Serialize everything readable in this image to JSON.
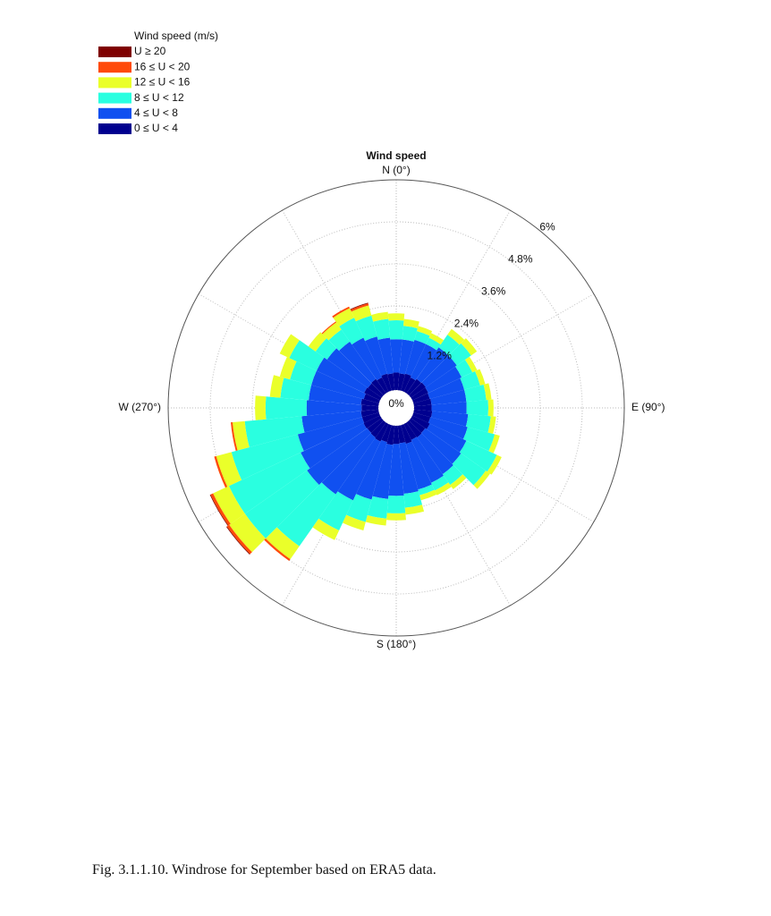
{
  "chart_data": {
    "type": "windrose",
    "title": "Wind speed",
    "legend_title": "Wind speed (m/s)",
    "directions": [
      0,
      10,
      20,
      30,
      40,
      50,
      60,
      70,
      80,
      90,
      100,
      110,
      120,
      130,
      140,
      150,
      160,
      170,
      180,
      190,
      200,
      210,
      220,
      230,
      240,
      250,
      260,
      270,
      280,
      290,
      300,
      310,
      320,
      330,
      340,
      350
    ],
    "direction_labels": [
      {
        "value": 0,
        "label": "N (0°)"
      },
      {
        "value": 90,
        "label": "E (90°)"
      },
      {
        "value": 180,
        "label": "S (180°)"
      },
      {
        "value": 270,
        "label": "W (270°)"
      }
    ],
    "rlim": [
      0,
      6
    ],
    "rticks": [
      {
        "value": 0,
        "label": "0%"
      },
      {
        "value": 1.2,
        "label": "1.2%"
      },
      {
        "value": 2.4,
        "label": "2.4%"
      },
      {
        "value": 3.6,
        "label": "3.6%"
      },
      {
        "value": 4.8,
        "label": "4.8%"
      },
      {
        "value": 6,
        "label": "6%"
      }
    ],
    "series": [
      {
        "name": "U ≥ 20",
        "color": "#7f0000",
        "values": [
          0,
          0,
          0,
          0,
          0,
          0,
          0,
          0,
          0,
          0,
          0,
          0,
          0,
          0,
          0,
          0,
          0,
          0,
          0,
          0,
          0,
          0,
          0,
          0.02,
          0.02,
          0,
          0,
          0,
          0,
          0,
          0,
          0,
          0,
          0,
          0.02,
          0
        ]
      },
      {
        "name": "16 ≤ U < 20",
        "color": "#ff4a0a",
        "values": [
          0,
          0,
          0,
          0,
          0,
          0,
          0,
          0,
          0,
          0,
          0,
          0,
          0,
          0,
          0,
          0,
          0,
          0,
          0,
          0,
          0,
          0,
          0.06,
          0.08,
          0.08,
          0.06,
          0.05,
          0,
          0,
          0,
          0,
          0,
          0.03,
          0.05,
          0.06,
          0
        ]
      },
      {
        "name": "12 ≤ U < 16",
        "color": "#eaff2a",
        "values": [
          0.2,
          0.2,
          0.15,
          0.15,
          0.2,
          0.2,
          0.15,
          0.15,
          0.15,
          0.15,
          0.15,
          0.15,
          0.15,
          0.15,
          0.15,
          0.15,
          0.15,
          0.2,
          0.2,
          0.2,
          0.25,
          0.3,
          0.45,
          0.55,
          0.5,
          0.45,
          0.35,
          0.3,
          0.3,
          0.3,
          0.3,
          0.25,
          0.25,
          0.3,
          0.3,
          0.2
        ]
      },
      {
        "name": "8 ≤ U < 12",
        "color": "#2affe0",
        "values": [
          0.54,
          0.39,
          0.26,
          0.2,
          0.44,
          0.5,
          0.34,
          0.47,
          0.57,
          0.62,
          0.65,
          0.8,
          0.96,
          0.86,
          0.37,
          0.24,
          0.17,
          0.4,
          0.5,
          0.56,
          0.66,
          0.95,
          1.81,
          2.16,
          2.26,
          1.96,
          1.63,
          1.17,
          0.81,
          0.63,
          0.86,
          0.4,
          0.42,
          0.63,
          0.62,
          0.54
        ]
      },
      {
        "name": "4 ≤ U < 8",
        "color": "#1050f0",
        "values": [
          0.95,
          0.97,
          1.0,
          1.05,
          1.1,
          1.08,
          1.05,
          1.02,
          1.0,
          1.0,
          1.03,
          1.1,
          1.15,
          1.25,
          1.28,
          1.35,
          1.35,
          1.45,
          1.48,
          1.55,
          1.7,
          1.85,
          1.98,
          2.1,
          1.98,
          1.9,
          1.7,
          1.57,
          1.5,
          1.55,
          1.5,
          1.42,
          1.3,
          1.25,
          1.1,
          1.02
        ]
      },
      {
        "name": "0 ≤ U < 4",
        "color": "#00008f",
        "values": [
          0.5,
          0.48,
          0.5,
          0.45,
          0.5,
          0.52,
          0.5,
          0.48,
          0.5,
          0.5,
          0.52,
          0.5,
          0.55,
          0.5,
          0.52,
          0.5,
          0.55,
          0.5,
          0.52,
          0.55,
          0.5,
          0.55,
          0.52,
          0.5,
          0.52,
          0.5,
          0.5,
          0.48,
          0.5,
          0.45,
          0.5,
          0.48,
          0.5,
          0.45,
          0.5,
          0.48
        ]
      }
    ]
  },
  "caption": "Fig. 3.1.1.10. Windrose for September based on ERA5 data."
}
